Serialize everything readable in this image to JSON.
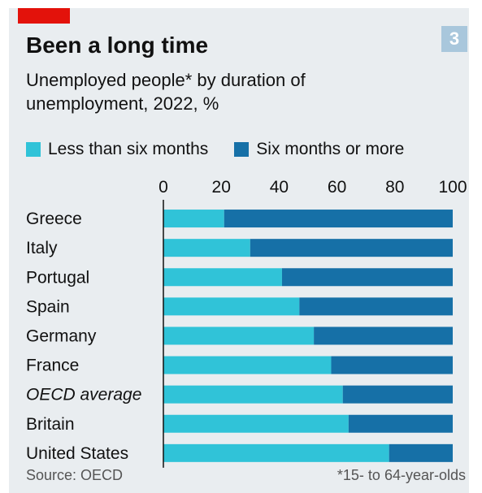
{
  "header": {
    "badge": "3",
    "title": "Been a long time",
    "subtitle": "Unemployed people* by duration of unemployment, 2022, %"
  },
  "legend": {
    "short_label": "Less than six months",
    "long_label": "Six months or more"
  },
  "footer": {
    "source": "Source: OECD",
    "footnote": "*15- to 64-year-olds"
  },
  "colors": {
    "short": "#30c3d8",
    "long": "#1670a7",
    "accent": "#e3120b",
    "background": "#e9edf0"
  },
  "chart_data": {
    "type": "bar",
    "orientation": "horizontal",
    "stacked": true,
    "title": "Been a long time",
    "subtitle": "Unemployed people* by duration of unemployment, 2022, %",
    "categories": [
      "Greece",
      "Italy",
      "Portugal",
      "Spain",
      "Germany",
      "France",
      "OECD average",
      "Britain",
      "United States"
    ],
    "italic_categories": [
      "OECD average"
    ],
    "series": [
      {
        "name": "Less than six months",
        "values": [
          21,
          30,
          41,
          47,
          52,
          58,
          62,
          64,
          78
        ]
      },
      {
        "name": "Six months or more",
        "values": [
          79,
          70,
          59,
          53,
          48,
          42,
          38,
          36,
          22
        ]
      }
    ],
    "xlim": [
      0,
      100
    ],
    "xticks": [
      0,
      20,
      40,
      60,
      80,
      100
    ],
    "tick_position": "top",
    "legend_position": "top",
    "grid": false
  }
}
